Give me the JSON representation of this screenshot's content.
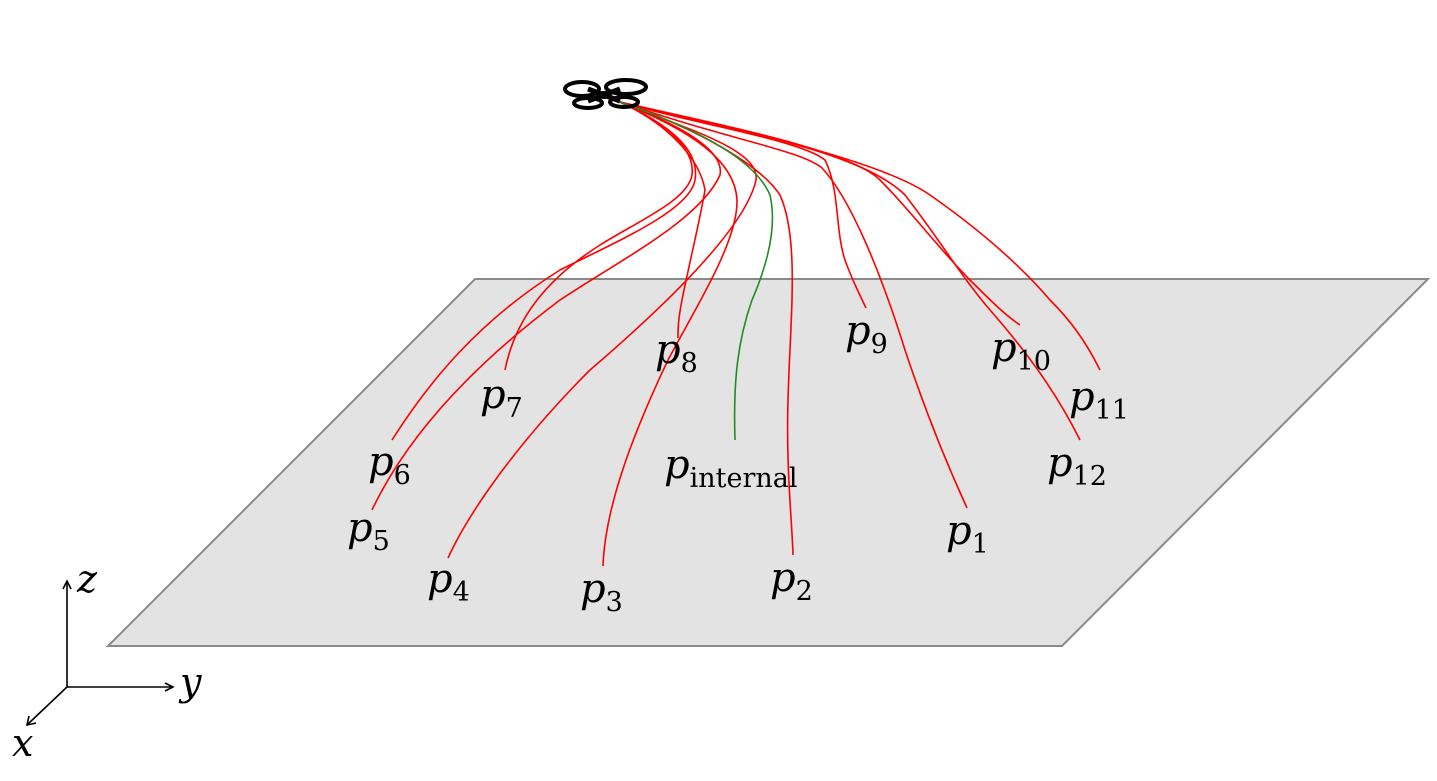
{
  "diagram": {
    "points": [
      {
        "id": "p1",
        "base": "p",
        "sub": "1",
        "kind": "external"
      },
      {
        "id": "p2",
        "base": "p",
        "sub": "2",
        "kind": "external"
      },
      {
        "id": "p3",
        "base": "p",
        "sub": "3",
        "kind": "external"
      },
      {
        "id": "p4",
        "base": "p",
        "sub": "4",
        "kind": "external"
      },
      {
        "id": "p5",
        "base": "p",
        "sub": "5",
        "kind": "external"
      },
      {
        "id": "p6",
        "base": "p",
        "sub": "6",
        "kind": "external"
      },
      {
        "id": "p7",
        "base": "p",
        "sub": "7",
        "kind": "external"
      },
      {
        "id": "p8",
        "base": "p",
        "sub": "8",
        "kind": "external"
      },
      {
        "id": "p9",
        "base": "p",
        "sub": "9",
        "kind": "external"
      },
      {
        "id": "p10",
        "base": "p",
        "sub": "10",
        "kind": "external"
      },
      {
        "id": "p11",
        "base": "p",
        "sub": "11",
        "kind": "external"
      },
      {
        "id": "p12",
        "base": "p",
        "sub": "12",
        "kind": "external"
      },
      {
        "id": "pinternal",
        "base": "p",
        "sub": "internal",
        "kind": "internal"
      }
    ],
    "axes": {
      "x": "x",
      "y": "y",
      "z": "z"
    },
    "colors": {
      "external_path": "#ff0000",
      "internal_path": "#228b22",
      "plane_fill": "#e3e3e3",
      "plane_stroke": "#8a8a8a",
      "drone": "#000000"
    },
    "icon": "quadcopter-drone-icon"
  }
}
